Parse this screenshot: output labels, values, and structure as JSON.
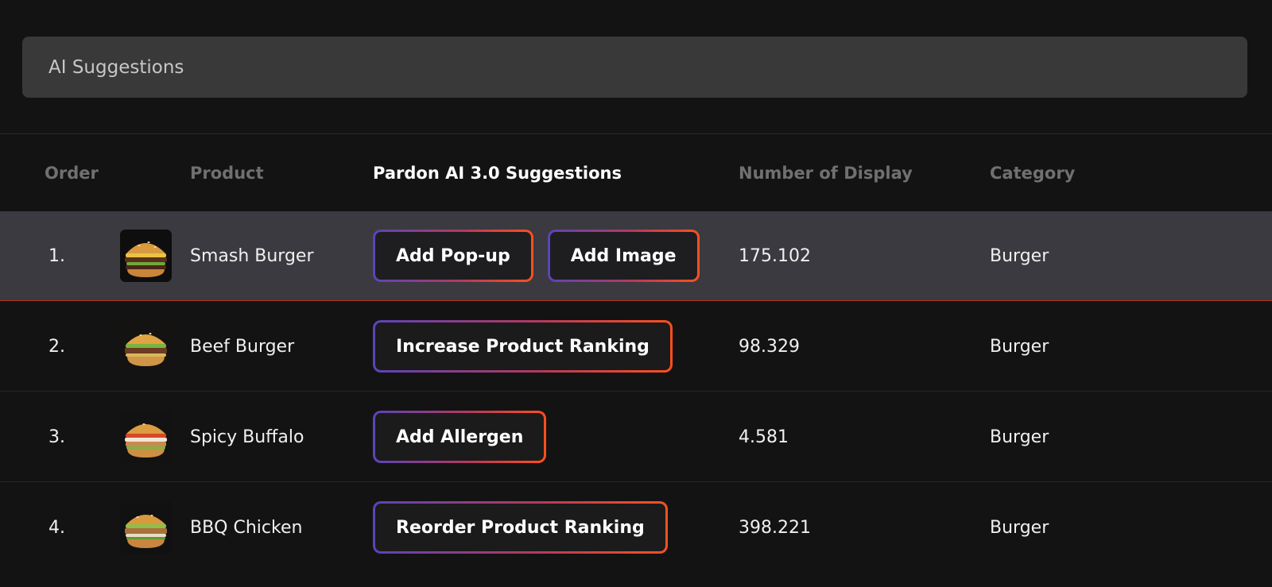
{
  "panel": {
    "title": "AI Suggestions"
  },
  "table": {
    "headers": {
      "order": "Order",
      "product": "Product",
      "suggestions": "Pardon AI 3.0 Suggestions",
      "displays": "Number of Display",
      "category": "Category"
    },
    "rows": [
      {
        "order": "1.",
        "product": "Smash Burger",
        "image_icon": "burger-photo",
        "suggestions": [
          "Add Pop-up",
          "Add Image"
        ],
        "displays": "175.102",
        "category": "Burger"
      },
      {
        "order": "2.",
        "product": "Beef Burger",
        "image_icon": "burger-photo",
        "suggestions": [
          "Increase Product Ranking"
        ],
        "displays": "98.329",
        "category": "Burger"
      },
      {
        "order": "3.",
        "product": "Spicy Buffalo",
        "image_icon": "burger-photo",
        "suggestions": [
          "Add Allergen"
        ],
        "displays": "4.581",
        "category": "Burger"
      },
      {
        "order": "4.",
        "product": "BBQ Chicken",
        "image_icon": "burger-photo",
        "suggestions": [
          "Reorder Product Ranking"
        ],
        "displays": "398.221",
        "category": "Burger"
      }
    ]
  },
  "colors": {
    "background": "#131313",
    "title_bar": "#393939",
    "highlight_row": "#3a3a40",
    "gradient_start": "#5b44b9",
    "gradient_end": "#ff4f1e"
  }
}
